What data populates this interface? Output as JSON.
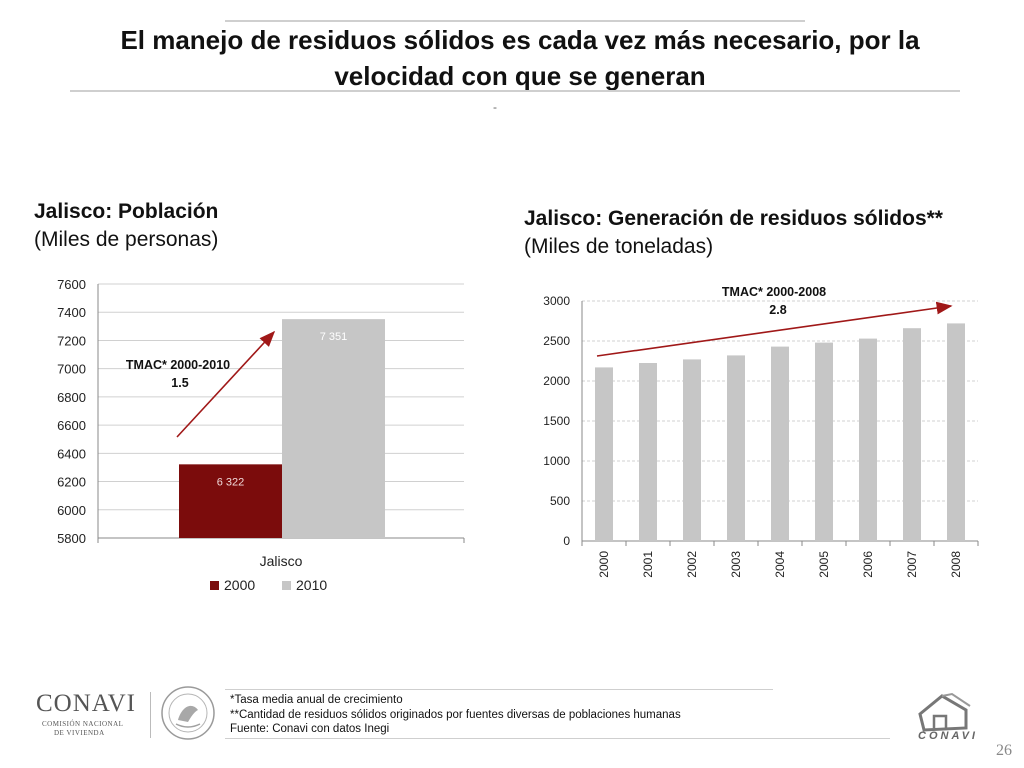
{
  "slide": {
    "title": "El manejo de residuos sólidos es cada vez más necesario, por la velocidad con que se generan",
    "marker": "-",
    "page_number": "26"
  },
  "left_chart_heading": {
    "bold": "Jalisco: Población",
    "sub": "(Miles de personas)"
  },
  "right_chart_heading": {
    "bold": "Jalisco: Generación de residuos sólidos**",
    "sub": "(Miles de toneladas)"
  },
  "chart_data": [
    {
      "type": "bar",
      "title": "Jalisco: Población",
      "subtitle": "(Miles de personas)",
      "categories": [
        "Jalisco"
      ],
      "series": [
        {
          "name": "2000",
          "values": [
            6322
          ],
          "label": "6 322",
          "color": "#7b0c0c"
        },
        {
          "name": "2010",
          "values": [
            7351
          ],
          "label": "7 351",
          "color": "#c6c6c6"
        }
      ],
      "ylim": [
        5800,
        7600
      ],
      "yticks": [
        5800,
        6000,
        6200,
        6400,
        6600,
        6800,
        7000,
        7200,
        7400,
        7600
      ],
      "grid": true,
      "legend": "bottom",
      "annotation": {
        "line1": "TMAC* 2000-2010",
        "line2": "1.5"
      }
    },
    {
      "type": "bar",
      "title": "Jalisco: Generación de residuos sólidos**",
      "subtitle": "(Miles de toneladas)",
      "categories": [
        "2000",
        "2001",
        "2002",
        "2003",
        "2004",
        "2005",
        "2006",
        "2007",
        "2008"
      ],
      "series": [
        {
          "name": "Residuos",
          "values": [
            2170,
            2225,
            2270,
            2320,
            2430,
            2480,
            2530,
            2660,
            2720
          ],
          "color": "#c6c6c6"
        }
      ],
      "ylim": [
        0,
        3000
      ],
      "yticks": [
        0,
        500,
        1000,
        1500,
        2000,
        2500,
        3000
      ],
      "grid": true,
      "annotation": {
        "line1": "TMAC* 2000-2008",
        "line2": "2.8"
      }
    }
  ],
  "footer": {
    "note1": "*Tasa media anual de crecimiento",
    "note2": "**Cantidad de residuos sólidos originados por fuentes diversas de poblaciones humanas",
    "source": "Fuente: Conavi con datos Inegi"
  },
  "logos": {
    "conavi_main": "CONAVI",
    "conavi_sub1": "COMISIÓN NACIONAL",
    "conavi_sub2": "DE VIVIENDA",
    "conavi_right": "CONAVI"
  },
  "colors": {
    "arrow": "#a01818",
    "grid": "#d0d0d0",
    "axis": "#888888"
  }
}
